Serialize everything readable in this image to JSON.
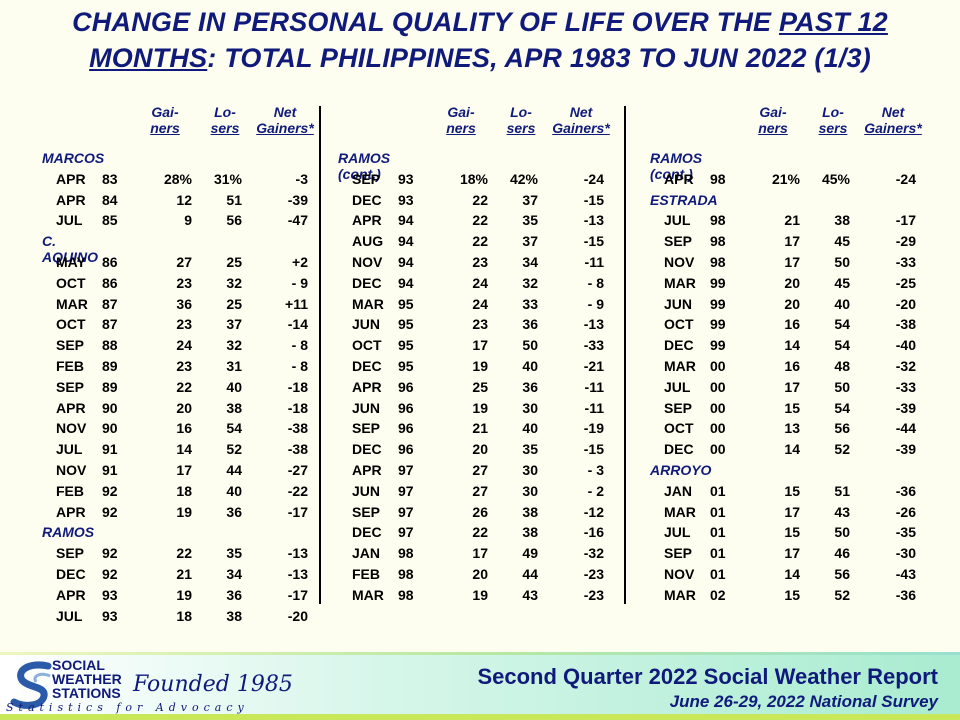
{
  "title": {
    "line1_prefix": "CHANGE IN PERSONAL QUALITY OF LIFE OVER THE ",
    "line1_underlined": "PAST 12",
    "line2_underlined": "MONTHS",
    "line2_rest": ": TOTAL PHILIPPINES, APR 1983 TO JUN 2022 (1/3)"
  },
  "headers": {
    "gainers_top": "Gai-",
    "gainers_bottom": "ners",
    "losers_top": "Lo-",
    "losers_bottom": "sers",
    "net_top": "Net",
    "net_bottom": "Gainers*"
  },
  "panels": [
    {
      "items": [
        {
          "type": "group",
          "label": "MARCOS"
        },
        {
          "type": "row",
          "month": "APR",
          "year": "83",
          "gainers": "28%",
          "losers": "31%",
          "net": "-3"
        },
        {
          "type": "row",
          "month": "APR",
          "year": "84",
          "gainers": "12",
          "losers": "51",
          "net": "-39"
        },
        {
          "type": "row",
          "month": "JUL",
          "year": "85",
          "gainers": "9",
          "losers": "56",
          "net": "-47"
        },
        {
          "type": "group",
          "label": "C. AQUINO"
        },
        {
          "type": "row",
          "month": "MAY",
          "year": "86",
          "gainers": "27",
          "losers": "25",
          "net": "+2"
        },
        {
          "type": "row",
          "month": "OCT",
          "year": "86",
          "gainers": "23",
          "losers": "32",
          "net": "- 9"
        },
        {
          "type": "row",
          "month": "MAR",
          "year": "87",
          "gainers": "36",
          "losers": "25",
          "net": "+11"
        },
        {
          "type": "row",
          "month": "OCT",
          "year": "87",
          "gainers": "23",
          "losers": "37",
          "net": "-14"
        },
        {
          "type": "row",
          "month": "SEP",
          "year": "88",
          "gainers": "24",
          "losers": "32",
          "net": "- 8"
        },
        {
          "type": "row",
          "month": "FEB",
          "year": "89",
          "gainers": "23",
          "losers": "31",
          "net": "- 8"
        },
        {
          "type": "row",
          "month": "SEP",
          "year": "89",
          "gainers": "22",
          "losers": "40",
          "net": "-18"
        },
        {
          "type": "row",
          "month": "APR",
          "year": "90",
          "gainers": "20",
          "losers": "38",
          "net": "-18"
        },
        {
          "type": "row",
          "month": "NOV",
          "year": "90",
          "gainers": "16",
          "losers": "54",
          "net": "-38"
        },
        {
          "type": "row",
          "month": "JUL",
          "year": "91",
          "gainers": "14",
          "losers": "52",
          "net": "-38"
        },
        {
          "type": "row",
          "month": "NOV",
          "year": "91",
          "gainers": "17",
          "losers": "44",
          "net": "-27"
        },
        {
          "type": "row",
          "month": "FEB",
          "year": "92",
          "gainers": "18",
          "losers": "40",
          "net": "-22"
        },
        {
          "type": "row",
          "month": "APR",
          "year": "92",
          "gainers": "19",
          "losers": "36",
          "net": "-17"
        },
        {
          "type": "group",
          "label": "RAMOS"
        },
        {
          "type": "row",
          "month": "SEP",
          "year": "92",
          "gainers": "22",
          "losers": "35",
          "net": "-13"
        },
        {
          "type": "row",
          "month": "DEC",
          "year": "92",
          "gainers": "21",
          "losers": "34",
          "net": "-13"
        },
        {
          "type": "row",
          "month": "APR",
          "year": "93",
          "gainers": "19",
          "losers": "36",
          "net": "-17"
        },
        {
          "type": "row",
          "month": "JUL",
          "year": "93",
          "gainers": "18",
          "losers": "38",
          "net": "-20"
        }
      ]
    },
    {
      "items": [
        {
          "type": "group",
          "label": "RAMOS (cont.)"
        },
        {
          "type": "row",
          "month": "SEP",
          "year": "93",
          "gainers": "18%",
          "losers": "42%",
          "net": "-24"
        },
        {
          "type": "row",
          "month": "DEC",
          "year": "93",
          "gainers": "22",
          "losers": "37",
          "net": "-15"
        },
        {
          "type": "row",
          "month": "APR",
          "year": "94",
          "gainers": "22",
          "losers": "35",
          "net": "-13"
        },
        {
          "type": "row",
          "month": "AUG",
          "year": "94",
          "gainers": "22",
          "losers": "37",
          "net": "-15"
        },
        {
          "type": "row",
          "month": "NOV",
          "year": "94",
          "gainers": "23",
          "losers": "34",
          "net": "-11"
        },
        {
          "type": "row",
          "month": "DEC",
          "year": "94",
          "gainers": "24",
          "losers": "32",
          "net": "- 8"
        },
        {
          "type": "row",
          "month": "MAR",
          "year": "95",
          "gainers": "24",
          "losers": "33",
          "net": "- 9"
        },
        {
          "type": "row",
          "month": "JUN",
          "year": "95",
          "gainers": "23",
          "losers": "36",
          "net": "-13"
        },
        {
          "type": "row",
          "month": "OCT",
          "year": "95",
          "gainers": "17",
          "losers": "50",
          "net": "-33"
        },
        {
          "type": "row",
          "month": "DEC",
          "year": "95",
          "gainers": "19",
          "losers": "40",
          "net": "-21"
        },
        {
          "type": "row",
          "month": "APR",
          "year": "96",
          "gainers": "25",
          "losers": "36",
          "net": "-11"
        },
        {
          "type": "row",
          "month": "JUN",
          "year": "96",
          "gainers": "19",
          "losers": "30",
          "net": "-11"
        },
        {
          "type": "row",
          "month": "SEP",
          "year": "96",
          "gainers": "21",
          "losers": "40",
          "net": "-19"
        },
        {
          "type": "row",
          "month": "DEC",
          "year": "96",
          "gainers": "20",
          "losers": "35",
          "net": "-15"
        },
        {
          "type": "row",
          "month": "APR",
          "year": "97",
          "gainers": "27",
          "losers": "30",
          "net": "- 3"
        },
        {
          "type": "row",
          "month": "JUN",
          "year": "97",
          "gainers": "27",
          "losers": "30",
          "net": "- 2"
        },
        {
          "type": "row",
          "month": "SEP",
          "year": "97",
          "gainers": "26",
          "losers": "38",
          "net": "-12"
        },
        {
          "type": "row",
          "month": "DEC",
          "year": "97",
          "gainers": "22",
          "losers": "38",
          "net": "-16"
        },
        {
          "type": "row",
          "month": "JAN",
          "year": "98",
          "gainers": "17",
          "losers": "49",
          "net": "-32"
        },
        {
          "type": "row",
          "month": "FEB",
          "year": "98",
          "gainers": "20",
          "losers": "44",
          "net": "-23"
        },
        {
          "type": "row",
          "month": "MAR",
          "year": "98",
          "gainers": "19",
          "losers": "43",
          "net": "-23"
        }
      ]
    },
    {
      "items": [
        {
          "type": "group",
          "label": "RAMOS (cont.)"
        },
        {
          "type": "row",
          "month": "APR",
          "year": "98",
          "gainers": "21%",
          "losers": "45%",
          "net": "-24"
        },
        {
          "type": "group",
          "label": "ESTRADA"
        },
        {
          "type": "row",
          "month": "JUL",
          "year": "98",
          "gainers": "21",
          "losers": "38",
          "net": "-17"
        },
        {
          "type": "row",
          "month": "SEP",
          "year": "98",
          "gainers": "17",
          "losers": "45",
          "net": "-29"
        },
        {
          "type": "row",
          "month": "NOV",
          "year": "98",
          "gainers": "17",
          "losers": "50",
          "net": "-33"
        },
        {
          "type": "row",
          "month": "MAR",
          "year": "99",
          "gainers": "20",
          "losers": "45",
          "net": "-25"
        },
        {
          "type": "row",
          "month": "JUN",
          "year": "99",
          "gainers": "20",
          "losers": "40",
          "net": "-20"
        },
        {
          "type": "row",
          "month": "OCT",
          "year": "99",
          "gainers": "16",
          "losers": "54",
          "net": "-38"
        },
        {
          "type": "row",
          "month": "DEC",
          "year": "99",
          "gainers": "14",
          "losers": "54",
          "net": "-40"
        },
        {
          "type": "row",
          "month": "MAR",
          "year": "00",
          "gainers": "16",
          "losers": "48",
          "net": "-32"
        },
        {
          "type": "row",
          "month": "JUL",
          "year": "00",
          "gainers": "17",
          "losers": "50",
          "net": "-33"
        },
        {
          "type": "row",
          "month": "SEP",
          "year": "00",
          "gainers": "15",
          "losers": "54",
          "net": "-39"
        },
        {
          "type": "row",
          "month": "OCT",
          "year": "00",
          "gainers": "13",
          "losers": "56",
          "net": "-44"
        },
        {
          "type": "row",
          "month": "DEC",
          "year": "00",
          "gainers": "14",
          "losers": "52",
          "net": "-39"
        },
        {
          "type": "group",
          "label": "ARROYO"
        },
        {
          "type": "row",
          "month": "JAN",
          "year": "01",
          "gainers": "15",
          "losers": "51",
          "net": "-36"
        },
        {
          "type": "row",
          "month": "MAR",
          "year": "01",
          "gainers": "17",
          "losers": "43",
          "net": "-26"
        },
        {
          "type": "row",
          "month": "JUL",
          "year": "01",
          "gainers": "15",
          "losers": "50",
          "net": "-35"
        },
        {
          "type": "row",
          "month": "SEP",
          "year": "01",
          "gainers": "17",
          "losers": "46",
          "net": "-30"
        },
        {
          "type": "row",
          "month": "NOV",
          "year": "01",
          "gainers": "14",
          "losers": "56",
          "net": "-43"
        },
        {
          "type": "row",
          "month": "MAR",
          "year": "02",
          "gainers": "15",
          "losers": "52",
          "net": "-36"
        }
      ]
    }
  ],
  "footer": {
    "org_line1": "SOCIAL",
    "org_line2": "WEATHER",
    "org_line3": "STATIONS",
    "founded": "Founded 1985",
    "tagline": "Statistics for Advocacy",
    "report_title": "Second Quarter 2022 Social Weather Report",
    "survey_line": "June 26-29, 2022 National Survey",
    "brand_color": "#101a7a"
  }
}
